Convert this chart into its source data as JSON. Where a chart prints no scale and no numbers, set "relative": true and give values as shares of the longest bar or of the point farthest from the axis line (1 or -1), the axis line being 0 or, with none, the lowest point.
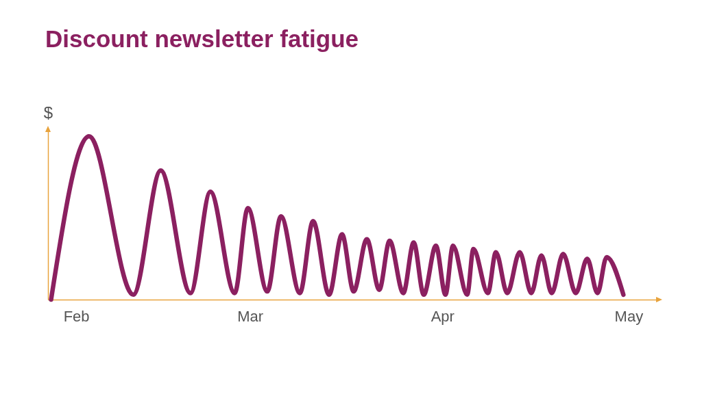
{
  "chart_data": {
    "type": "line",
    "title": "Discount newsletter fatigue",
    "ylabel": "$",
    "relative": true,
    "color": "#8b2060",
    "x": [
      "--01-27T23:00",
      "--02-03T02:00",
      "--02-10T05:00",
      "--02-14T15:00",
      "--02-19T10:00",
      "--02-22T15:00",
      "--02-26T13:00",
      "--02-28T16:00",
      "--03-03T19:00",
      "--03-06T00:00",
      "--03-09T01:00",
      "--03-11T04:00",
      "--03-13T18:00",
      "--03-15T20:00",
      "--03-17T17:00",
      "--03-19T20:00",
      "--03-21T20:00",
      "--03-23T12:00",
      "--03-25T17:00",
      "--03-27T09:00",
      "--03-29T00:00",
      "--03-30T23:00",
      "--04-01T12:00",
      "--04-02T17:00",
      "--04-05T00:00",
      "--04-06T00:00",
      "--04-08T08:00",
      "--04-09T15:00",
      "--04-11T11:00",
      "--04-13T11:00",
      "--04-15T08:00",
      "--04-16T23:00",
      "--04-18T15:00",
      "--04-20T11:00",
      "--04-22T12:00",
      "--04-24T08:00",
      "--04-26T00:00",
      "--04-27T11:00",
      "--04-30T04:00"
    ],
    "values": [
      0,
      1,
      0.03,
      0.79,
      0.04,
      0.66,
      0.04,
      0.56,
      0.05,
      0.51,
      0.04,
      0.48,
      0.03,
      0.4,
      0.05,
      0.37,
      0.06,
      0.36,
      0.04,
      0.35,
      0.03,
      0.33,
      0.03,
      0.33,
      0.03,
      0.31,
      0.04,
      0.29,
      0.04,
      0.29,
      0.04,
      0.27,
      0.04,
      0.28,
      0.04,
      0.25,
      0.04,
      0.26,
      0.03
    ],
    "xlim": [
      "--01-27T11:00",
      "--05-05T13:00"
    ],
    "xticks": [
      {
        "value": "--02-01",
        "label": "Feb"
      },
      {
        "value": "--03-01",
        "label": "Mar"
      },
      {
        "value": "--04-01",
        "label": "Apr"
      },
      {
        "value": "--05-01",
        "label": "May"
      }
    ]
  }
}
